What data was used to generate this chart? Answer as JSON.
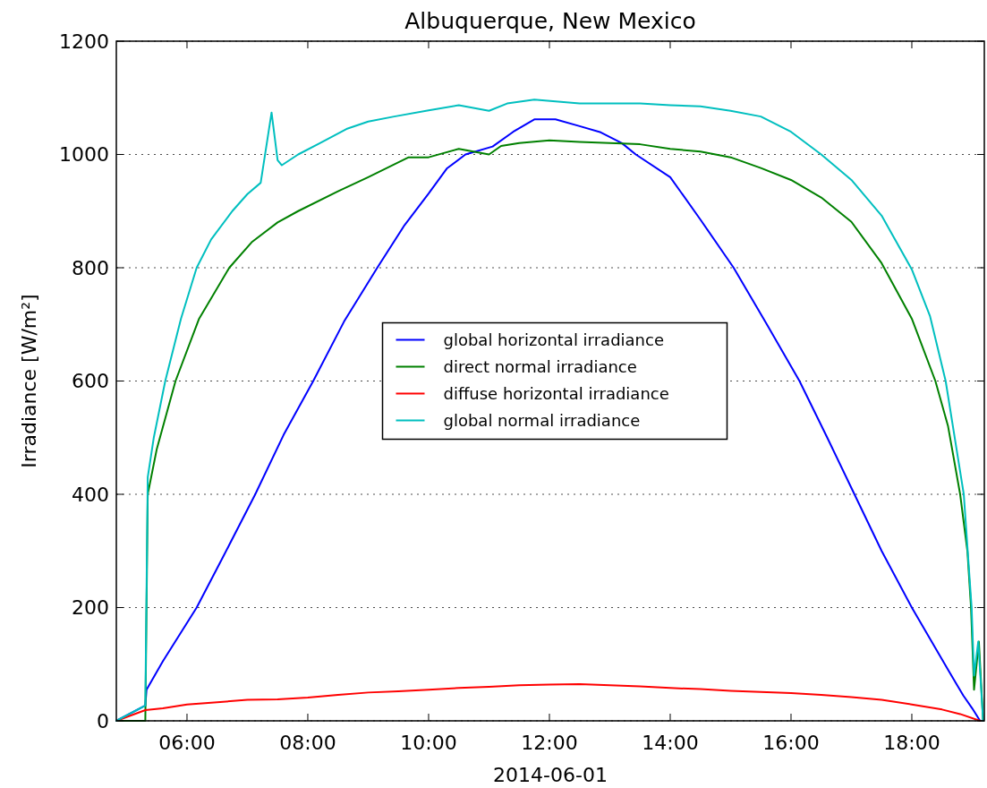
{
  "chart_data": {
    "type": "line",
    "title": "Albuquerque, New Mexico",
    "xlabel": "2014-06-01",
    "ylabel": "Irradiance [W/m²]",
    "xlim": [
      4.83,
      19.2
    ],
    "ylim": [
      0,
      1200
    ],
    "xticks": [
      {
        "value": 6,
        "label": "06:00"
      },
      {
        "value": 8,
        "label": "08:00"
      },
      {
        "value": 10,
        "label": "10:00"
      },
      {
        "value": 12,
        "label": "12:00"
      },
      {
        "value": 14,
        "label": "14:00"
      },
      {
        "value": 16,
        "label": "16:00"
      },
      {
        "value": 18,
        "label": "18:00"
      }
    ],
    "yticks": [
      0,
      200,
      400,
      600,
      800,
      1000,
      1200
    ],
    "grid": "y",
    "legend": "center",
    "marker": "none",
    "line_style": "solid",
    "series": [
      {
        "name": "global horizontal irradiance",
        "color": "#0000ff",
        "x": [
          4.83,
          5.31,
          5.33,
          5.6,
          6.16,
          6.6,
          7.13,
          7.6,
          8.09,
          8.6,
          9.15,
          9.6,
          10.0,
          10.3,
          10.61,
          11.06,
          11.4,
          11.75,
          12.1,
          12.5,
          12.85,
          13.2,
          13.43,
          14.0,
          14.5,
          15.05,
          15.6,
          16.14,
          16.6,
          17.05,
          17.5,
          18.0,
          18.3,
          18.6,
          18.85,
          19.0,
          19.13
        ],
        "values": [
          0,
          27,
          55,
          105,
          200,
          290,
          400,
          505,
          600,
          705,
          800,
          875,
          931,
          975,
          1000,
          1014,
          1040,
          1062,
          1062,
          1050,
          1039,
          1020,
          1000,
          960,
          885,
          800,
          700,
          600,
          500,
          400,
          300,
          200,
          145,
          90,
          45,
          22,
          0
        ]
      },
      {
        "name": "direct normal irradiance",
        "color": "#008000",
        "x": [
          4.83,
          5.31,
          5.35,
          5.5,
          5.81,
          6.2,
          6.7,
          7.07,
          7.5,
          7.84,
          8.5,
          9.0,
          9.67,
          10.0,
          10.5,
          11.0,
          11.2,
          11.5,
          12.0,
          12.5,
          13.0,
          13.5,
          14.0,
          14.5,
          15.0,
          15.5,
          16.0,
          16.5,
          17.0,
          17.5,
          18.0,
          18.39,
          18.6,
          18.8,
          18.92,
          18.98,
          19.03,
          19.11,
          19.18
        ],
        "values": [
          0,
          0,
          400,
          480,
          600,
          710,
          800,
          845,
          880,
          900,
          935,
          960,
          995,
          995,
          1010,
          1000,
          1015,
          1020,
          1025,
          1022,
          1020,
          1018,
          1010,
          1005,
          995,
          976,
          955,
          924,
          881,
          808,
          710,
          600,
          520,
          400,
          300,
          200,
          55,
          140,
          0
        ]
      },
      {
        "name": "diffuse horizontal irradiance",
        "color": "#ff0000",
        "x": [
          4.83,
          5.31,
          5.6,
          6.0,
          6.5,
          7.0,
          7.5,
          8.0,
          8.5,
          9.0,
          9.5,
          10.0,
          10.5,
          11.0,
          11.5,
          12.0,
          12.5,
          13.0,
          13.5,
          14.0,
          14.5,
          15.0,
          15.5,
          16.0,
          16.5,
          17.0,
          17.5,
          18.0,
          18.5,
          18.8,
          19.13
        ],
        "values": [
          0,
          19,
          22,
          29,
          33,
          37,
          38,
          41,
          46,
          50,
          52,
          55,
          58,
          60,
          63,
          64,
          65,
          63,
          61,
          58,
          56,
          53,
          51,
          49,
          46,
          42,
          37,
          29,
          20,
          12,
          0
        ]
      },
      {
        "name": "global normal irradiance",
        "color": "#00bfbf",
        "x": [
          4.83,
          5.31,
          5.35,
          5.45,
          5.64,
          5.9,
          6.16,
          6.4,
          6.75,
          7.0,
          7.22,
          7.4,
          7.5,
          7.57,
          7.84,
          8.2,
          8.64,
          9.0,
          9.43,
          10.0,
          10.5,
          11.0,
          11.3,
          11.75,
          12.5,
          13.0,
          13.5,
          14.0,
          14.5,
          15.0,
          15.5,
          16.0,
          16.5,
          17.0,
          17.5,
          18.0,
          18.3,
          18.56,
          18.86,
          18.99,
          19.03,
          19.1,
          19.18
        ],
        "values": [
          0,
          27,
          430,
          500,
          600,
          710,
          800,
          850,
          900,
          930,
          950,
          1074,
          990,
          981,
          1000,
          1020,
          1045,
          1058,
          1067,
          1078,
          1087,
          1077,
          1090,
          1097,
          1090,
          1090,
          1090,
          1087,
          1085,
          1077,
          1067,
          1040,
          1000,
          955,
          892,
          797,
          715,
          600,
          400,
          200,
          80,
          140,
          0
        ]
      }
    ]
  }
}
